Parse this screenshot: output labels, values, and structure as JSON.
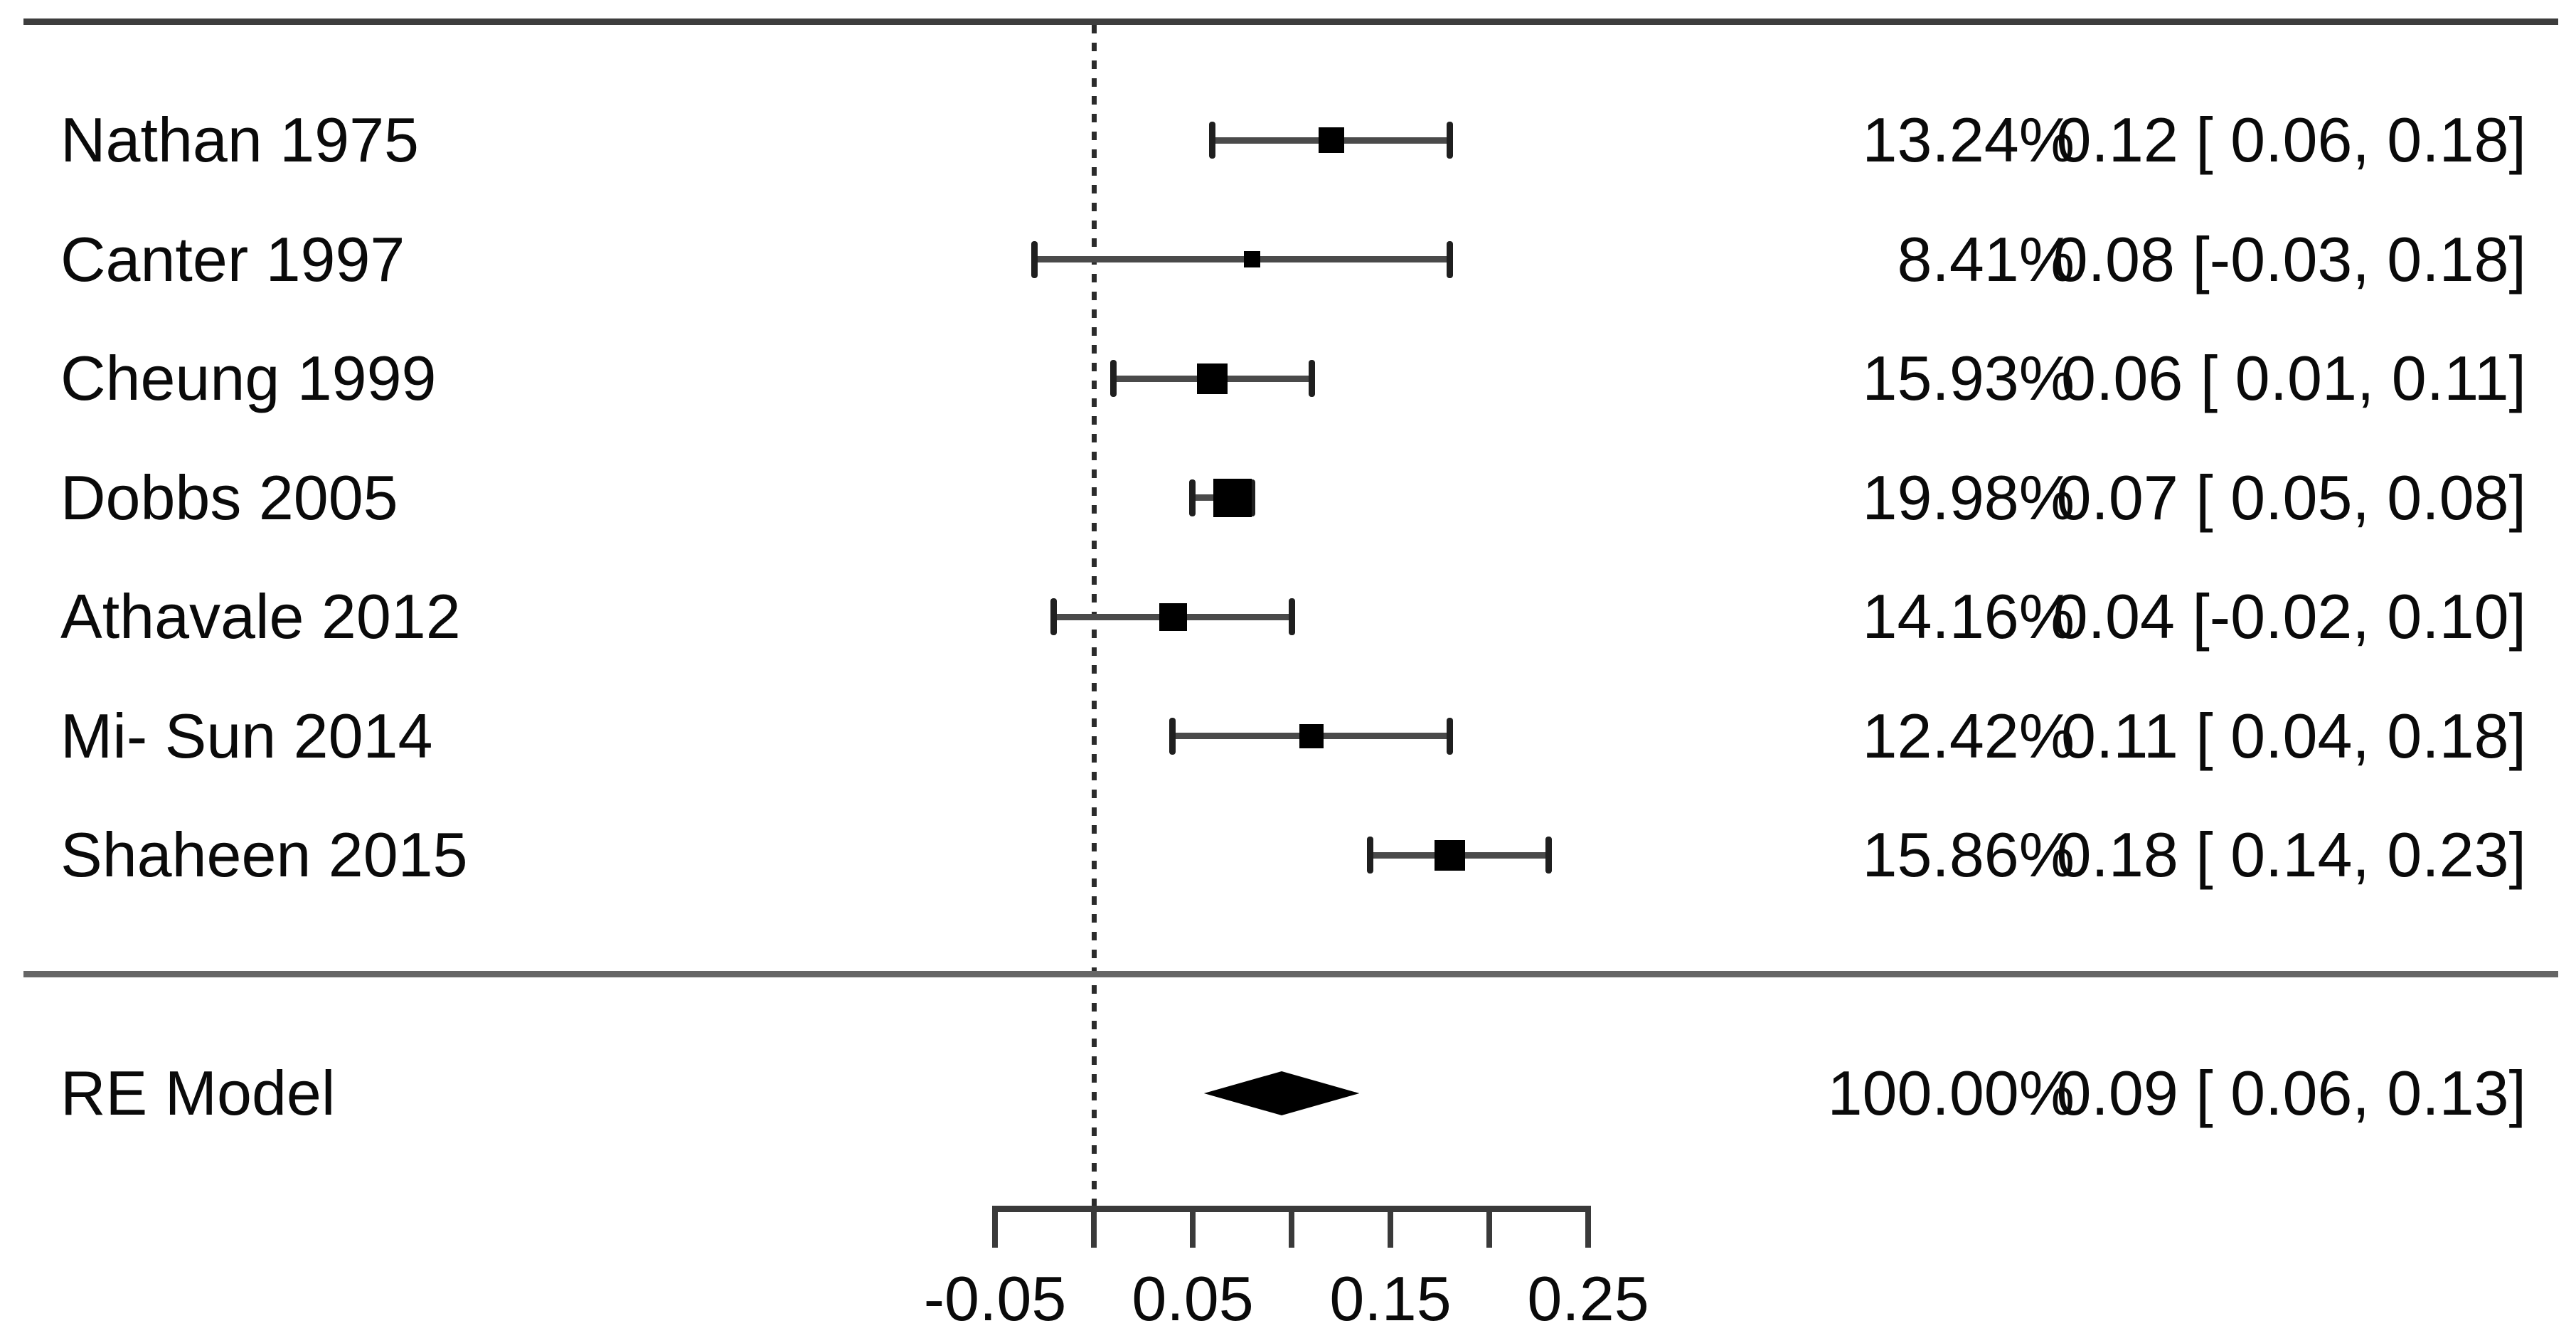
{
  "colors": {
    "background": "#ffffff",
    "text": "#0a0a0a",
    "rule_top": "#3d3d3d",
    "rule_separator": "#666666",
    "axis": "#3a3a3a",
    "whisker": "#4a4a4a",
    "marker": "#000000",
    "reference_line": "#2b2b2b"
  },
  "chart_data": {
    "type": "forest",
    "title": "",
    "xlabel": "",
    "axis": {
      "xlim": [
        -0.05,
        0.25
      ],
      "ticks": [
        -0.05,
        0,
        0.05,
        0.1,
        0.15,
        0.2,
        0.25
      ],
      "tick_labels": [
        {
          "value": -0.05,
          "label": "-0.05"
        },
        {
          "value": 0.05,
          "label": "0.05"
        },
        {
          "value": 0.15,
          "label": "0.15"
        },
        {
          "value": 0.25,
          "label": "0.25"
        }
      ],
      "reference_line": 0,
      "grid": false
    },
    "studies": [
      {
        "label": "Nathan 1975",
        "weight": 13.24,
        "weight_label": "13.24%",
        "estimate": 0.12,
        "ci_low": 0.06,
        "ci_high": 0.18,
        "estimate_label": "0.12 [ 0.06, 0.18]"
      },
      {
        "label": "Canter 1997",
        "weight": 8.41,
        "weight_label": "8.41%",
        "estimate": 0.08,
        "ci_low": -0.03,
        "ci_high": 0.18,
        "estimate_label": "0.08 [-0.03, 0.18]"
      },
      {
        "label": "Cheung 1999",
        "weight": 15.93,
        "weight_label": "15.93%",
        "estimate": 0.06,
        "ci_low": 0.01,
        "ci_high": 0.11,
        "estimate_label": "0.06 [ 0.01, 0.11]"
      },
      {
        "label": "Dobbs 2005",
        "weight": 19.98,
        "weight_label": "19.98%",
        "estimate": 0.07,
        "ci_low": 0.05,
        "ci_high": 0.08,
        "estimate_label": "0.07 [ 0.05, 0.08]"
      },
      {
        "label": "Athavale 2012",
        "weight": 14.16,
        "weight_label": "14.16%",
        "estimate": 0.04,
        "ci_low": -0.02,
        "ci_high": 0.1,
        "estimate_label": "0.04 [-0.02, 0.10]"
      },
      {
        "label": "Mi- Sun 2014",
        "weight": 12.42,
        "weight_label": "12.42%",
        "estimate": 0.11,
        "ci_low": 0.04,
        "ci_high": 0.18,
        "estimate_label": "0.11 [ 0.04, 0.18]"
      },
      {
        "label": "Shaheen 2015",
        "weight": 15.86,
        "weight_label": "15.86%",
        "estimate": 0.18,
        "ci_low": 0.14,
        "ci_high": 0.23,
        "estimate_label": "0.18 [ 0.14, 0.23]"
      }
    ],
    "summary": {
      "label": "RE Model",
      "weight": 100.0,
      "weight_label": "100.00%",
      "estimate": 0.09,
      "ci_low": 0.06,
      "ci_high": 0.13,
      "estimate_label": "0.09 [ 0.06, 0.13]"
    }
  }
}
